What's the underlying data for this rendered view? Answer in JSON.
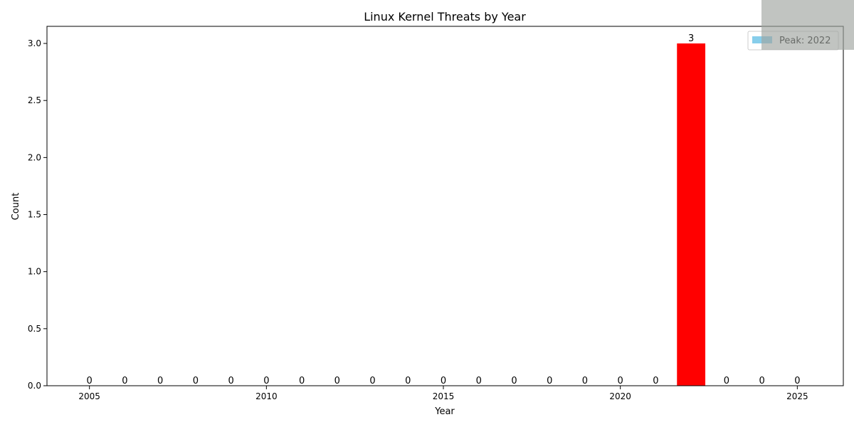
{
  "chart_data": {
    "type": "bar",
    "title": "Linux Kernel Threats by Year",
    "xlabel": "Year",
    "ylabel": "Count",
    "x": [
      2005,
      2006,
      2007,
      2008,
      2009,
      2010,
      2011,
      2012,
      2013,
      2014,
      2015,
      2016,
      2017,
      2018,
      2019,
      2020,
      2021,
      2022,
      2023,
      2024,
      2025
    ],
    "values": [
      0,
      0,
      0,
      0,
      0,
      0,
      0,
      0,
      0,
      0,
      0,
      0,
      0,
      0,
      0,
      0,
      0,
      3,
      0,
      0,
      0
    ],
    "xlim": [
      2003.8,
      2026.3
    ],
    "ylim": [
      0,
      3.15
    ],
    "xticks": [
      2005,
      2010,
      2015,
      2020,
      2025
    ],
    "yticks": [
      "0.0",
      "0.5",
      "1.0",
      "1.5",
      "2.0",
      "2.5",
      "3.0"
    ],
    "bar_color": "#87ceeb",
    "peak_color": "#ff0000",
    "peak_year": 2022,
    "legend": {
      "label": "Peak: 2022",
      "swatch_color": "#87ceeb",
      "position": "top-right"
    },
    "grid": false
  }
}
